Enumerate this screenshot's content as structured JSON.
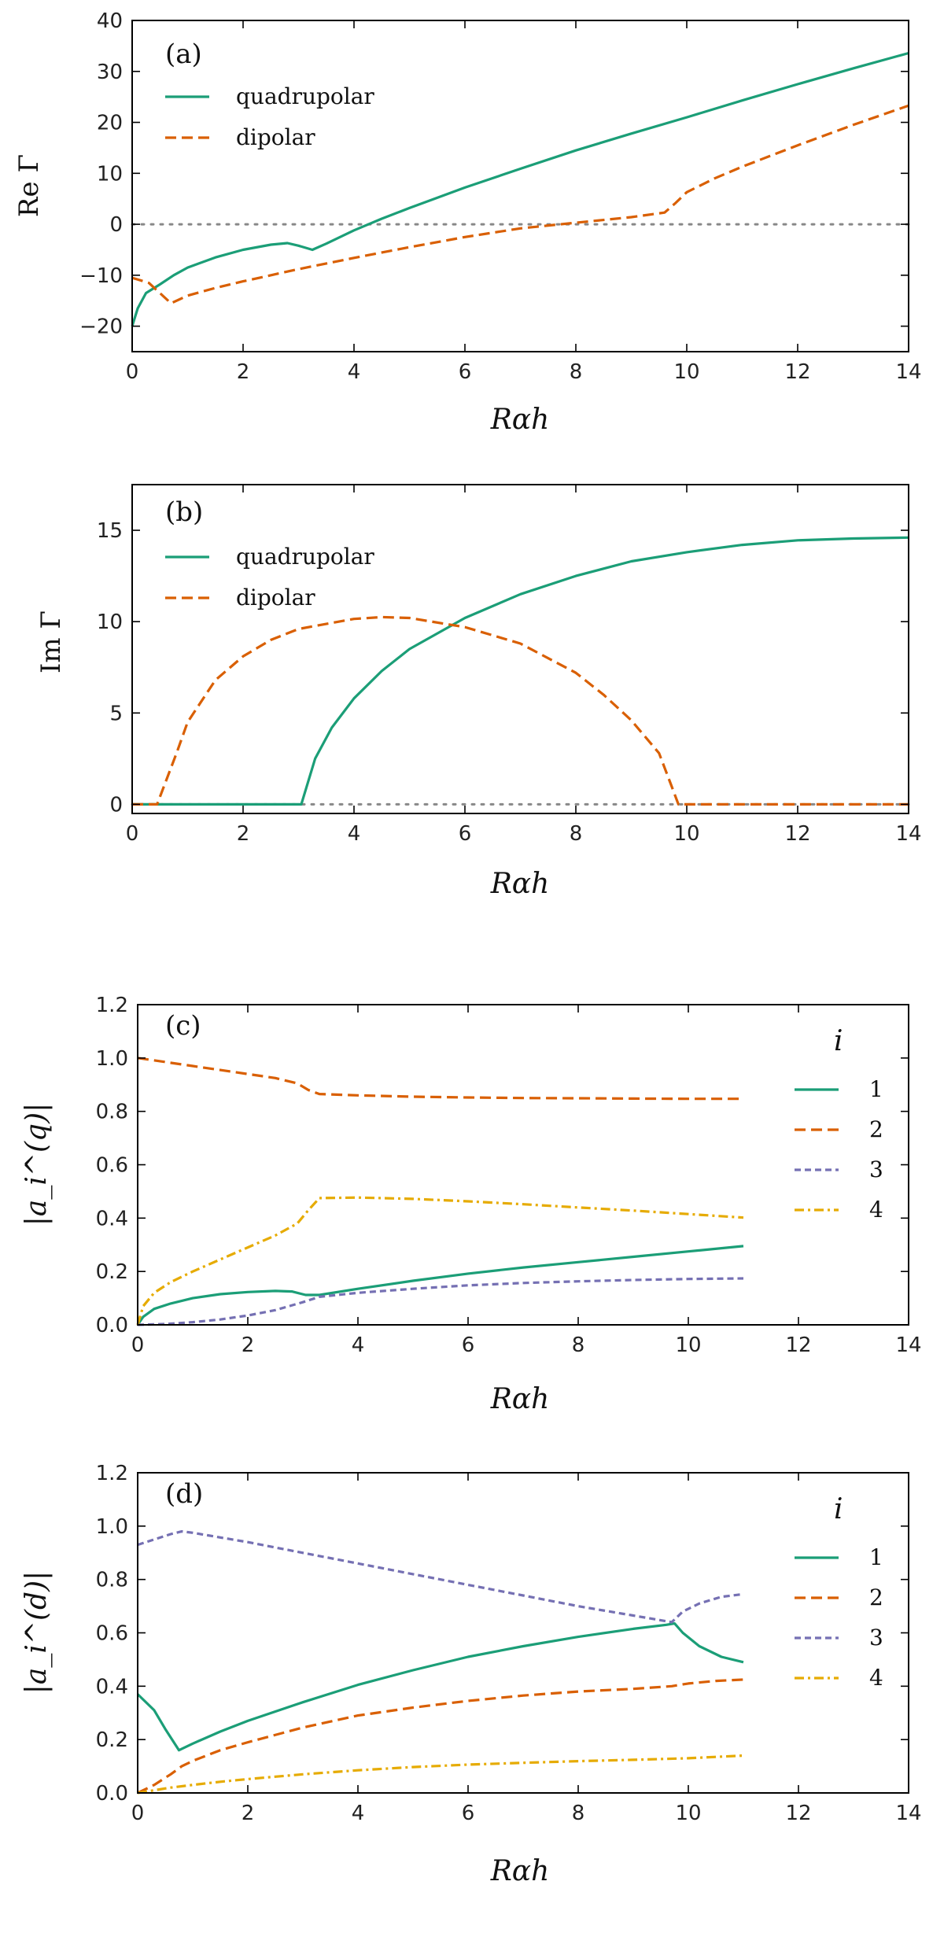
{
  "colors": {
    "q1": "#1b9e77",
    "q2": "#d95f02",
    "q3": "#7570b3",
    "q4": "#e6ab02",
    "zero": "#888888"
  },
  "chart_data": [
    {
      "id": "a",
      "type": "line",
      "tag": "(a)",
      "ylabel": "Re Γ",
      "xlabel": "Rαh",
      "xlim": [
        0,
        14
      ],
      "ylim": [
        -25,
        40
      ],
      "xticks": [
        0,
        2,
        4,
        6,
        8,
        10,
        12,
        14
      ],
      "yticks": [
        -20,
        -10,
        0,
        10,
        20,
        30,
        40
      ],
      "zero_line": true,
      "legend_title": "",
      "series": [
        {
          "name": "quadrupolar",
          "style": "solid",
          "color": "#1b9e77",
          "x": [
            0,
            0.1,
            0.25,
            0.5,
            0.75,
            1,
            1.5,
            2,
            2.5,
            2.8,
            3,
            3.25,
            3.5,
            4,
            4.5,
            5,
            6,
            7,
            8,
            9,
            10,
            11,
            12,
            13,
            14
          ],
          "y": [
            -20,
            -16.5,
            -13.5,
            -11.8,
            -10,
            -8.5,
            -6.5,
            -5,
            -4,
            -3.7,
            -4.2,
            -5,
            -3.8,
            -1.2,
            1.1,
            3.2,
            7.2,
            10.9,
            14.5,
            17.8,
            21,
            24.3,
            27.5,
            30.6,
            33.6
          ]
        },
        {
          "name": "dipolar",
          "style": "dashed",
          "color": "#d95f02",
          "x": [
            0,
            0.3,
            0.5,
            0.7,
            1,
            1.5,
            2,
            3,
            4,
            5,
            6,
            7,
            8,
            9,
            9.6,
            9.8,
            10,
            10.5,
            11,
            12,
            13,
            14
          ],
          "y": [
            -10.5,
            -11.5,
            -13.5,
            -15.5,
            -14,
            -12.5,
            -11.2,
            -8.8,
            -6.6,
            -4.5,
            -2.5,
            -0.8,
            0.3,
            1.4,
            2.3,
            4.2,
            6.3,
            9,
            11.3,
            15.5,
            19.5,
            23.3
          ]
        }
      ]
    },
    {
      "id": "b",
      "type": "line",
      "tag": "(b)",
      "ylabel": "Im Γ",
      "xlabel": "Rαh",
      "xlim": [
        0,
        14
      ],
      "ylim": [
        -0.5,
        17.5
      ],
      "xticks": [
        0,
        2,
        4,
        6,
        8,
        10,
        12,
        14
      ],
      "yticks": [
        0,
        5,
        10,
        15
      ],
      "zero_line": true,
      "legend_title": "",
      "series": [
        {
          "name": "quadrupolar",
          "style": "solid",
          "color": "#1b9e77",
          "x": [
            0,
            3.05,
            3.3,
            3.6,
            4,
            4.5,
            5,
            6,
            7,
            8,
            9,
            10,
            11,
            12,
            13,
            14
          ],
          "y": [
            0,
            0,
            2.5,
            4.2,
            5.8,
            7.3,
            8.5,
            10.2,
            11.5,
            12.5,
            13.3,
            13.8,
            14.2,
            14.45,
            14.55,
            14.6
          ]
        },
        {
          "name": "dipolar",
          "style": "dashed",
          "color": "#d95f02",
          "x": [
            0,
            0.45,
            0.6,
            0.8,
            1,
            1.5,
            2,
            2.5,
            3,
            4,
            4.5,
            5,
            6,
            7,
            8,
            8.5,
            9,
            9.5,
            9.7,
            9.85,
            10,
            11,
            12,
            13,
            14
          ],
          "y": [
            0,
            0,
            1.2,
            2.8,
            4.5,
            6.8,
            8.1,
            9.0,
            9.6,
            10.15,
            10.25,
            10.2,
            9.7,
            8.8,
            7.2,
            6.0,
            4.6,
            2.8,
            1.2,
            0,
            0,
            0,
            0,
            0,
            0
          ]
        }
      ]
    },
    {
      "id": "c",
      "type": "line",
      "tag": "(c)",
      "ylabel": "|a_i^(q)|",
      "xlabel": "Rαh",
      "xlim": [
        0,
        14
      ],
      "ylim": [
        0,
        1.2
      ],
      "xticks": [
        0,
        2,
        4,
        6,
        8,
        10,
        12,
        14
      ],
      "yticks": [
        0.0,
        0.2,
        0.4,
        0.6,
        0.8,
        1.0,
        1.2
      ],
      "zero_line": false,
      "legend_title": "i",
      "series": [
        {
          "name": "1",
          "style": "solid",
          "color": "#1b9e77",
          "x": [
            0,
            0.1,
            0.3,
            0.6,
            1,
            1.5,
            2,
            2.5,
            2.8,
            3.05,
            3.3,
            4,
            5,
            6,
            7,
            8,
            9,
            10,
            11
          ],
          "y": [
            0,
            0.03,
            0.06,
            0.08,
            0.1,
            0.115,
            0.123,
            0.127,
            0.125,
            0.112,
            0.112,
            0.135,
            0.165,
            0.192,
            0.215,
            0.235,
            0.255,
            0.275,
            0.295
          ]
        },
        {
          "name": "2",
          "style": "dashed",
          "color": "#d95f02",
          "x": [
            0,
            0.5,
            1,
            1.5,
            2,
            2.5,
            2.9,
            3.1,
            3.3,
            4,
            5,
            6,
            7,
            8,
            9,
            10,
            11
          ],
          "y": [
            1.0,
            0.985,
            0.97,
            0.955,
            0.94,
            0.925,
            0.905,
            0.88,
            0.865,
            0.86,
            0.855,
            0.852,
            0.85,
            0.849,
            0.848,
            0.847,
            0.847
          ]
        },
        {
          "name": "3",
          "style": "short-dash",
          "color": "#7570b3",
          "x": [
            0,
            0.5,
            1,
            1.5,
            2,
            2.5,
            3,
            3.3,
            4,
            5,
            6,
            7,
            8,
            9,
            10,
            11
          ],
          "y": [
            0,
            0.003,
            0.01,
            0.02,
            0.035,
            0.055,
            0.085,
            0.105,
            0.12,
            0.135,
            0.148,
            0.157,
            0.163,
            0.168,
            0.172,
            0.174
          ]
        },
        {
          "name": "4",
          "style": "dash-dot",
          "color": "#e6ab02",
          "x": [
            0,
            0.1,
            0.3,
            0.6,
            1,
            1.5,
            2,
            2.5,
            2.9,
            3.1,
            3.3,
            4,
            5,
            6,
            7,
            8,
            9,
            10,
            11
          ],
          "y": [
            0,
            0.07,
            0.12,
            0.16,
            0.2,
            0.245,
            0.29,
            0.335,
            0.38,
            0.43,
            0.475,
            0.477,
            0.472,
            0.463,
            0.452,
            0.44,
            0.428,
            0.415,
            0.402
          ]
        }
      ]
    },
    {
      "id": "d",
      "type": "line",
      "tag": "(d)",
      "ylabel": "|a_i^(d)|",
      "xlabel": "Rαh",
      "xlim": [
        0,
        14
      ],
      "ylim": [
        0,
        1.2
      ],
      "xticks": [
        0,
        2,
        4,
        6,
        8,
        10,
        12,
        14
      ],
      "yticks": [
        0.0,
        0.2,
        0.4,
        0.6,
        0.8,
        1.0,
        1.2
      ],
      "zero_line": false,
      "legend_title": "i",
      "series": [
        {
          "name": "1",
          "style": "solid",
          "color": "#1b9e77",
          "x": [
            0,
            0.3,
            0.5,
            0.75,
            1,
            1.5,
            2,
            3,
            4,
            5,
            6,
            7,
            8,
            9,
            9.6,
            9.75,
            9.9,
            10.2,
            10.6,
            11
          ],
          "y": [
            0.37,
            0.31,
            0.24,
            0.16,
            0.185,
            0.23,
            0.27,
            0.34,
            0.405,
            0.46,
            0.51,
            0.55,
            0.585,
            0.615,
            0.63,
            0.635,
            0.6,
            0.55,
            0.51,
            0.49
          ]
        },
        {
          "name": "2",
          "style": "dashed",
          "color": "#d95f02",
          "x": [
            0,
            0.3,
            0.6,
            0.8,
            1,
            1.5,
            2,
            3,
            4,
            5,
            6,
            7,
            8,
            9,
            9.7,
            10,
            10.5,
            11
          ],
          "y": [
            0,
            0.03,
            0.07,
            0.1,
            0.12,
            0.16,
            0.19,
            0.245,
            0.29,
            0.32,
            0.345,
            0.365,
            0.38,
            0.39,
            0.4,
            0.41,
            0.42,
            0.425
          ]
        },
        {
          "name": "3",
          "style": "short-dash",
          "color": "#7570b3",
          "x": [
            0,
            0.3,
            0.6,
            0.8,
            1,
            2,
            3,
            4,
            5,
            6,
            7,
            8,
            9,
            9.7,
            9.9,
            10.2,
            10.6,
            11
          ],
          "y": [
            0.93,
            0.95,
            0.97,
            0.98,
            0.975,
            0.94,
            0.9,
            0.86,
            0.82,
            0.78,
            0.74,
            0.7,
            0.665,
            0.64,
            0.68,
            0.71,
            0.735,
            0.745
          ]
        },
        {
          "name": "4",
          "style": "dash-dot",
          "color": "#e6ab02",
          "x": [
            0,
            0.3,
            0.6,
            1,
            1.5,
            2,
            3,
            4,
            5,
            6,
            7,
            8,
            9,
            10,
            11
          ],
          "y": [
            0,
            0.01,
            0.02,
            0.03,
            0.042,
            0.052,
            0.07,
            0.085,
            0.097,
            0.106,
            0.113,
            0.119,
            0.124,
            0.13,
            0.14
          ]
        }
      ]
    }
  ]
}
